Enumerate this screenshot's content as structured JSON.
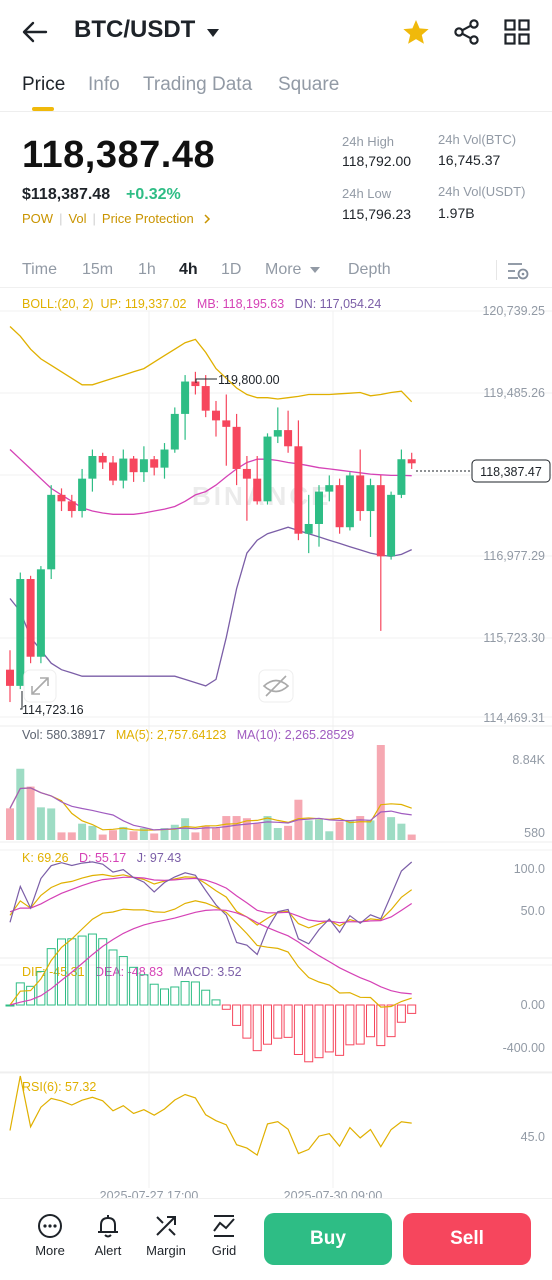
{
  "header": {
    "pair": "BTC/USDT",
    "icons": [
      "back-arrow-icon",
      "dropdown-caret-icon",
      "star-icon",
      "share-icon",
      "grid-menu-icon"
    ],
    "star_color": "#f0b90b"
  },
  "tabs": [
    {
      "label": "Price",
      "active": true
    },
    {
      "label": "Info"
    },
    {
      "label": "Trading Data"
    },
    {
      "label": "Square"
    }
  ],
  "ticker": {
    "price": "118,387.48",
    "price_usd": "$118,387.48",
    "change": "+0.32%",
    "tags": [
      "POW",
      "Vol",
      "Price Protection"
    ],
    "high_label": "24h High",
    "high_value": "118,792.00",
    "low_label": "24h Low",
    "low_value": "115,796.23",
    "vol_btc_label": "24h Vol(BTC)",
    "vol_btc_value": "16,745.37",
    "vol_usdt_label": "24h Vol(USDT)",
    "vol_usdt_value": "1.97B"
  },
  "intervals": {
    "items": [
      "Time",
      "15m",
      "1h",
      "4h",
      "1D",
      "More",
      "Depth"
    ],
    "active": "4h"
  },
  "colors": {
    "up": "#2ebd85",
    "down": "#f6465d",
    "accent": "#f0b90b",
    "boll_up": "#e0b000",
    "boll_mb": "#d542b6",
    "boll_dn": "#7b5ea7"
  },
  "boll": {
    "label": "BOLL:(20, 2)",
    "up": "UP: 119,337.02",
    "mb": "MB: 118,195.63",
    "dn": "DN: 117,054.24"
  },
  "price_chart": {
    "axis_labels": [
      "120,739.25",
      "119,485.26",
      "116,977.29",
      "115,723.30",
      "114,469.31"
    ],
    "current_price_tag": "118,387.47",
    "high_marker": "119,800.00",
    "low_marker": "114,723.16",
    "watermark": "BINANCE"
  },
  "volume": {
    "vol": "Vol: 580.38917",
    "ma5": "MA(5): 2,757.64123",
    "ma10": "MA(10): 2,265.28529",
    "axis_top": "8.84K",
    "axis_bottom": "580"
  },
  "kdj": {
    "k": "K: 69.26",
    "d": "D: 55.17",
    "j": "J: 97.43",
    "axis_top": "100.0",
    "axis_mid": "50.0"
  },
  "macd": {
    "dif": "DIF: -45.31",
    "dea": "DEA: -48.83",
    "macd": "MACD: 3.52",
    "axis_top": "0.00",
    "axis_bottom": "-400.00"
  },
  "rsi": {
    "label": "RSI(6): 57.32",
    "axis_mid": "45.0"
  },
  "time_axis": [
    "2025-07-27 17:00",
    "2025-07-30 09:00"
  ],
  "bottom_nav": {
    "items": [
      {
        "label": "More",
        "icon": "more-dots-icon"
      },
      {
        "label": "Alert",
        "icon": "bell-icon"
      },
      {
        "label": "Margin",
        "icon": "margin-icon"
      },
      {
        "label": "Grid",
        "icon": "grid-chart-icon"
      }
    ],
    "buy": "Buy",
    "sell": "Sell"
  },
  "chart_data": {
    "type": "candlestick",
    "title": "",
    "ylim": [
      114469.31,
      120739.25
    ],
    "candles": [
      [
        115200,
        115500,
        114700,
        114950
      ],
      [
        114950,
        116700,
        114900,
        116600
      ],
      [
        116600,
        116650,
        115300,
        115400
      ],
      [
        115400,
        116800,
        115300,
        116750
      ],
      [
        116750,
        118050,
        116600,
        117900
      ],
      [
        117900,
        118000,
        117650,
        117800
      ],
      [
        117800,
        117900,
        117550,
        117650
      ],
      [
        117650,
        118300,
        117550,
        118150
      ],
      [
        118150,
        118600,
        117950,
        118500
      ],
      [
        118500,
        118550,
        118300,
        118400
      ],
      [
        118400,
        118500,
        118050,
        118120
      ],
      [
        118120,
        118600,
        118000,
        118460
      ],
      [
        118460,
        118500,
        118100,
        118250
      ],
      [
        118250,
        118650,
        118100,
        118450
      ],
      [
        118450,
        118500,
        118200,
        118320
      ],
      [
        118320,
        118700,
        118150,
        118600
      ],
      [
        118600,
        119250,
        118550,
        119150
      ],
      [
        119150,
        119750,
        118750,
        119650
      ],
      [
        119650,
        119800,
        119450,
        119580
      ],
      [
        119580,
        119750,
        119100,
        119200
      ],
      [
        119200,
        119350,
        118800,
        119050
      ],
      [
        119050,
        119450,
        118350,
        118950
      ],
      [
        118950,
        119150,
        118050,
        118300
      ],
      [
        118300,
        118500,
        117500,
        118150
      ],
      [
        118150,
        118500,
        117750,
        117800
      ],
      [
        117800,
        118850,
        117750,
        118800
      ],
      [
        118800,
        119250,
        118700,
        118900
      ],
      [
        118900,
        119200,
        118550,
        118650
      ],
      [
        118650,
        119050,
        117200,
        117300
      ],
      [
        117300,
        117900,
        117000,
        117450
      ],
      [
        117450,
        118050,
        117100,
        117950
      ],
      [
        117950,
        118200,
        117800,
        118050
      ],
      [
        118050,
        118150,
        117300,
        117400
      ],
      [
        117400,
        118250,
        117350,
        118200
      ],
      [
        118200,
        118600,
        117500,
        117650
      ],
      [
        117650,
        118150,
        117250,
        118050
      ],
      [
        118050,
        118200,
        115800,
        116950
      ],
      [
        116950,
        117950,
        116900,
        117900
      ],
      [
        117900,
        118600,
        117850,
        118450
      ],
      [
        118450,
        118550,
        118300,
        118387
      ]
    ],
    "boll_up": [
      120500,
      120350,
      120150,
      120000,
      119900,
      119800,
      119700,
      119600,
      119600,
      119650,
      119700,
      119750,
      119800,
      119850,
      119950,
      120050,
      120150,
      120250,
      120300,
      120100,
      119850,
      119700,
      119550,
      119450,
      119400,
      119400,
      119380,
      119400,
      119420,
      119450,
      119450,
      119450,
      119460,
      119470,
      119480,
      119430,
      119450,
      119480,
      119500,
      119337
    ],
    "boll_mb": [
      118600,
      118450,
      118300,
      118150,
      118000,
      117900,
      117800,
      117700,
      117650,
      117620,
      117600,
      117600,
      117600,
      117620,
      117650,
      117680,
      117720,
      117800,
      117900,
      117950,
      118050,
      118180,
      118300,
      118400,
      118450,
      118450,
      118430,
      118400,
      118380,
      118350,
      118320,
      118300,
      118280,
      118260,
      118240,
      118220,
      118210,
      118200,
      118200,
      118196
    ],
    "boll_dn": [
      116300,
      116100,
      115700,
      115500,
      115300,
      115200,
      115150,
      115100,
      115100,
      115100,
      115100,
      115100,
      115100,
      115100,
      115100,
      115100,
      115100,
      115050,
      115000,
      114950,
      115050,
      115700,
      116450,
      117000,
      117200,
      117300,
      117350,
      117400,
      117350,
      117300,
      117250,
      117200,
      117150,
      117100,
      117050,
      117000,
      116970,
      116950,
      116980,
      117054
    ]
  }
}
